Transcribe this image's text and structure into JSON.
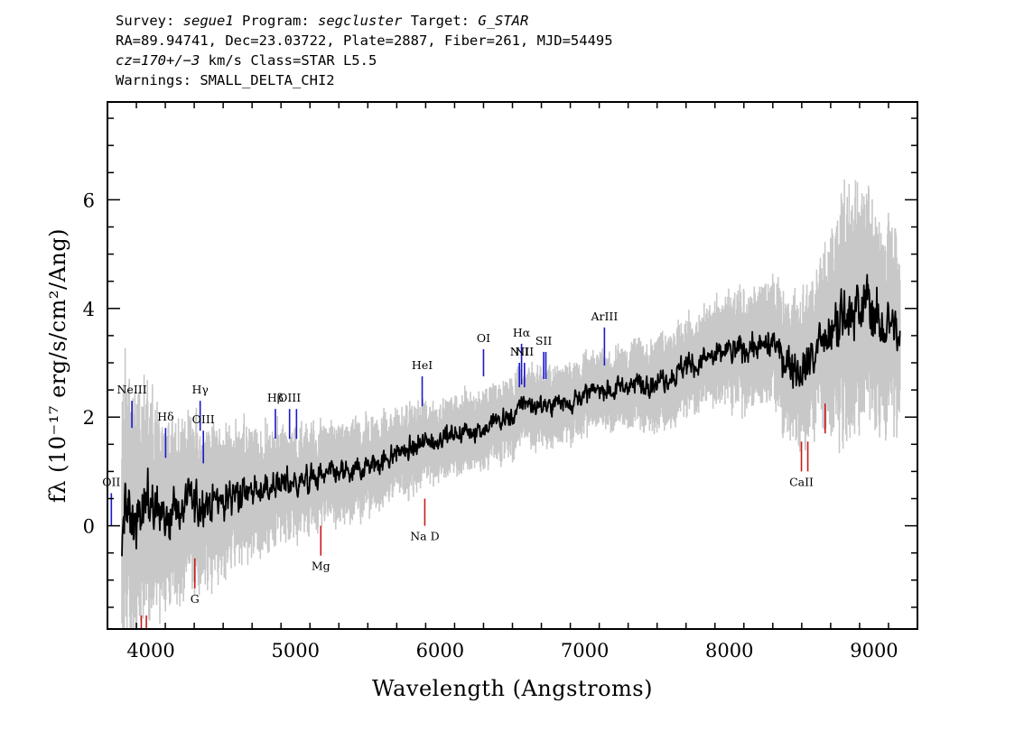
{
  "header": {
    "line1": {
      "survey_label": "Survey:",
      "survey": "segue1",
      "program_label": "Program:",
      "program": "segcluster",
      "target_label": "Target:",
      "target": "G_STAR"
    },
    "line2": "RA=89.94741, Dec=23.03722, Plate=2887, Fiber=261, MJD=54495",
    "line3": {
      "cz": "cz=170+/−3",
      "rest": "km/s Class=STAR L5.5"
    },
    "line4": "Warnings: SMALL_DELTA_CHI2"
  },
  "chart_data": {
    "type": "line",
    "xlabel": "Wavelength (Angstroms)",
    "ylabel": "fλ (10⁻¹⁷ erg/s/cm²/Ang)",
    "xlim": [
      3700,
      9300
    ],
    "ylim": [
      -1.9,
      7.8
    ],
    "x_ticks": [
      4000,
      5000,
      6000,
      7000,
      8000,
      9000
    ],
    "y_ticks": [
      0,
      2,
      4,
      6
    ],
    "grid": false,
    "series": [
      {
        "color": "#000000",
        "role": "flux",
        "x": [
          3800,
          3850,
          3900,
          4000,
          4100,
          4200,
          4300,
          4400,
          4500,
          4600,
          4700,
          4800,
          4900,
          5000,
          5100,
          5200,
          5300,
          5400,
          5500,
          5600,
          5700,
          5800,
          5900,
          6000,
          6100,
          6200,
          6300,
          6400,
          6500,
          6550,
          6600,
          6700,
          6800,
          6900,
          7000,
          7100,
          7200,
          7300,
          7400,
          7500,
          7600,
          7700,
          7800,
          7900,
          8000,
          8100,
          8200,
          8300,
          8400,
          8500,
          8600,
          8700,
          8800,
          8850,
          8900,
          8950,
          9000,
          9050,
          9100,
          9150,
          9180
        ],
        "y": [
          0.2,
          0.1,
          0.2,
          0.3,
          0.2,
          0.3,
          0.4,
          0.5,
          0.5,
          0.6,
          0.6,
          0.7,
          0.8,
          0.8,
          0.85,
          0.9,
          1.0,
          1.0,
          1.1,
          1.2,
          1.3,
          1.4,
          1.5,
          1.6,
          1.7,
          1.75,
          1.8,
          1.9,
          2.0,
          2.2,
          2.25,
          2.2,
          2.25,
          2.3,
          2.4,
          2.5,
          2.5,
          2.6,
          2.6,
          2.7,
          2.8,
          2.9,
          3.0,
          3.1,
          3.2,
          3.3,
          3.3,
          3.3,
          3.0,
          2.9,
          3.2,
          3.4,
          3.9,
          4.1,
          3.8,
          4.2,
          3.9,
          3.6,
          3.8,
          3.6,
          3.2
        ]
      },
      {
        "color": "#c8c8c8",
        "role": "error",
        "x": [
          3800,
          3900,
          4000,
          4200,
          4400,
          4600,
          4800,
          5000,
          5200,
          5400,
          5600,
          5800,
          6000,
          6200,
          6400,
          6600,
          6800,
          7000,
          7200,
          7400,
          7600,
          7800,
          8000,
          8200,
          8400,
          8600,
          8800,
          9000,
          9180
        ],
        "y": [
          1.5,
          1.3,
          1.1,
          0.9,
          0.8,
          0.7,
          0.6,
          0.55,
          0.5,
          0.5,
          0.45,
          0.45,
          0.4,
          0.4,
          0.4,
          0.4,
          0.4,
          0.4,
          0.4,
          0.45,
          0.5,
          0.5,
          0.55,
          0.6,
          0.7,
          0.8,
          1.3,
          1.1,
          1.0
        ]
      }
    ],
    "emission_lines": [
      {
        "label": "OII",
        "x": 3727,
        "y_top": 0.6,
        "y_bottom": 0.0,
        "color": "#1a1acc"
      },
      {
        "label": "NeIII",
        "x": 3869,
        "y_top": 2.3,
        "y_bottom": 1.8,
        "color": "#1a1acc"
      },
      {
        "label": "Hδ",
        "x": 4102,
        "y_top": 1.8,
        "y_bottom": 1.25,
        "color": "#1a1acc"
      },
      {
        "label": "Hγ",
        "x": 4341,
        "y_top": 2.3,
        "y_bottom": 1.75,
        "color": "#1a1acc"
      },
      {
        "label": "OIII",
        "x": 4363,
        "y_top": 1.75,
        "y_bottom": 1.15,
        "color": "#1a1acc"
      },
      {
        "label": "Hβ",
        "x": 4861,
        "y_top": 2.15,
        "y_bottom": 1.6,
        "color": "#1a1acc"
      },
      {
        "label": "OIII",
        "x": 4959,
        "y_top": 2.15,
        "y_bottom": 1.6,
        "color": "#1a1acc"
      },
      {
        "label": "",
        "x": 5007,
        "y_top": 2.15,
        "y_bottom": 1.6,
        "color": "#1a1acc"
      },
      {
        "label": "HeI",
        "x": 5876,
        "y_top": 2.75,
        "y_bottom": 2.2,
        "color": "#1a1acc"
      },
      {
        "label": "OI",
        "x": 6300,
        "y_top": 3.25,
        "y_bottom": 2.75,
        "color": "#1a1acc"
      },
      {
        "label": "NII",
        "x": 6548,
        "y_top": 3.0,
        "y_bottom": 2.55,
        "color": "#1a1acc"
      },
      {
        "label": "Hα",
        "x": 6563,
        "y_top": 3.35,
        "y_bottom": 2.6,
        "color": "#1a1acc"
      },
      {
        "label": "NII",
        "x": 6583,
        "y_top": 3.0,
        "y_bottom": 2.55,
        "color": "#1a1acc"
      },
      {
        "label": "SII",
        "x": 6716,
        "y_top": 3.2,
        "y_bottom": 2.7,
        "color": "#1a1acc"
      },
      {
        "label": "",
        "x": 6731,
        "y_top": 3.2,
        "y_bottom": 2.7,
        "color": "#1a1acc"
      },
      {
        "label": "ArIII",
        "x": 7136,
        "y_top": 3.65,
        "y_bottom": 2.95,
        "color": "#1a1acc"
      }
    ],
    "absorption_lines": [
      {
        "label": "G",
        "x": 4304,
        "y_top": -0.6,
        "y_bottom": -1.15,
        "color": "#cc1a1a"
      },
      {
        "label": "Mg",
        "x": 5175,
        "y_top": 0.0,
        "y_bottom": -0.55,
        "color": "#cc1a1a"
      },
      {
        "label": "Na D",
        "x": 5894,
        "y_top": 0.5,
        "y_bottom": 0.0,
        "color": "#cc1a1a"
      },
      {
        "label": "CaII",
        "x": 8498,
        "y_top": 1.55,
        "y_bottom": 1.0,
        "color": "#cc1a1a"
      },
      {
        "label": "",
        "x": 8542,
        "y_top": 1.55,
        "y_bottom": 1.0,
        "color": "#cc1a1a"
      },
      {
        "label": "",
        "x": 8662,
        "y_top": 2.25,
        "y_bottom": 1.7,
        "color": "#cc1a1a"
      },
      {
        "label": "",
        "x": 3934,
        "y_top": -1.65,
        "y_bottom": -1.95,
        "color": "#cc1a1a"
      },
      {
        "label": "",
        "x": 3969,
        "y_top": -1.65,
        "y_bottom": -1.95,
        "color": "#cc1a1a"
      }
    ]
  }
}
